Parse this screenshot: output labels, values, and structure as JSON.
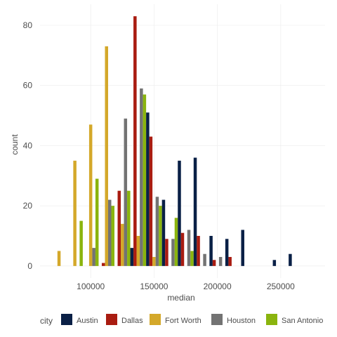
{
  "chart_data": {
    "type": "bar",
    "title": "",
    "xlabel": "median",
    "ylabel": "count",
    "xlim": [
      60000,
      285000
    ],
    "ylim": [
      -4,
      87
    ],
    "bin_width": 12500,
    "grid": true,
    "x_ticks": [
      {
        "value": 100000,
        "label": "100000"
      },
      {
        "value": 150000,
        "label": "150000"
      },
      {
        "value": 200000,
        "label": "200000"
      },
      {
        "value": 250000,
        "label": "250000"
      }
    ],
    "y_ticks": [
      {
        "value": 0,
        "label": "0"
      },
      {
        "value": 20,
        "label": "20"
      },
      {
        "value": 40,
        "label": "40"
      },
      {
        "value": 60,
        "label": "60"
      },
      {
        "value": 80,
        "label": "80"
      }
    ],
    "legend": {
      "title": "city",
      "position": "bottom"
    },
    "categories": [
      75000,
      87500,
      100000,
      112500,
      125000,
      137500,
      150000,
      162500,
      175000,
      187500,
      200000,
      212500,
      225000,
      237500,
      250000,
      262500
    ],
    "series": [
      {
        "name": "Austin",
        "color": "#0a2046",
        "values": [
          0,
          0,
          0,
          0,
          0,
          6,
          51,
          22,
          35,
          36,
          10,
          9,
          12,
          0,
          2,
          4
        ]
      },
      {
        "name": "Dallas",
        "color": "#a91c11",
        "values": [
          0,
          0,
          0,
          1,
          25,
          83,
          43,
          9,
          11,
          10,
          2,
          3,
          0,
          0,
          0,
          0
        ]
      },
      {
        "name": "Fort Worth",
        "color": "#d4a82a",
        "values": [
          5,
          35,
          47,
          73,
          14,
          10,
          3,
          0,
          0,
          0,
          0,
          0,
          0,
          0,
          0,
          0
        ]
      },
      {
        "name": "Houston",
        "color": "#737373",
        "values": [
          0,
          0,
          6,
          22,
          49,
          59,
          23,
          9,
          12,
          4,
          3,
          0,
          0,
          0,
          0,
          0
        ]
      },
      {
        "name": "San Antonio",
        "color": "#8ab40e",
        "values": [
          0,
          15,
          29,
          20,
          25,
          57,
          20,
          16,
          5,
          0,
          0,
          0,
          0,
          0,
          0,
          0
        ]
      }
    ]
  }
}
